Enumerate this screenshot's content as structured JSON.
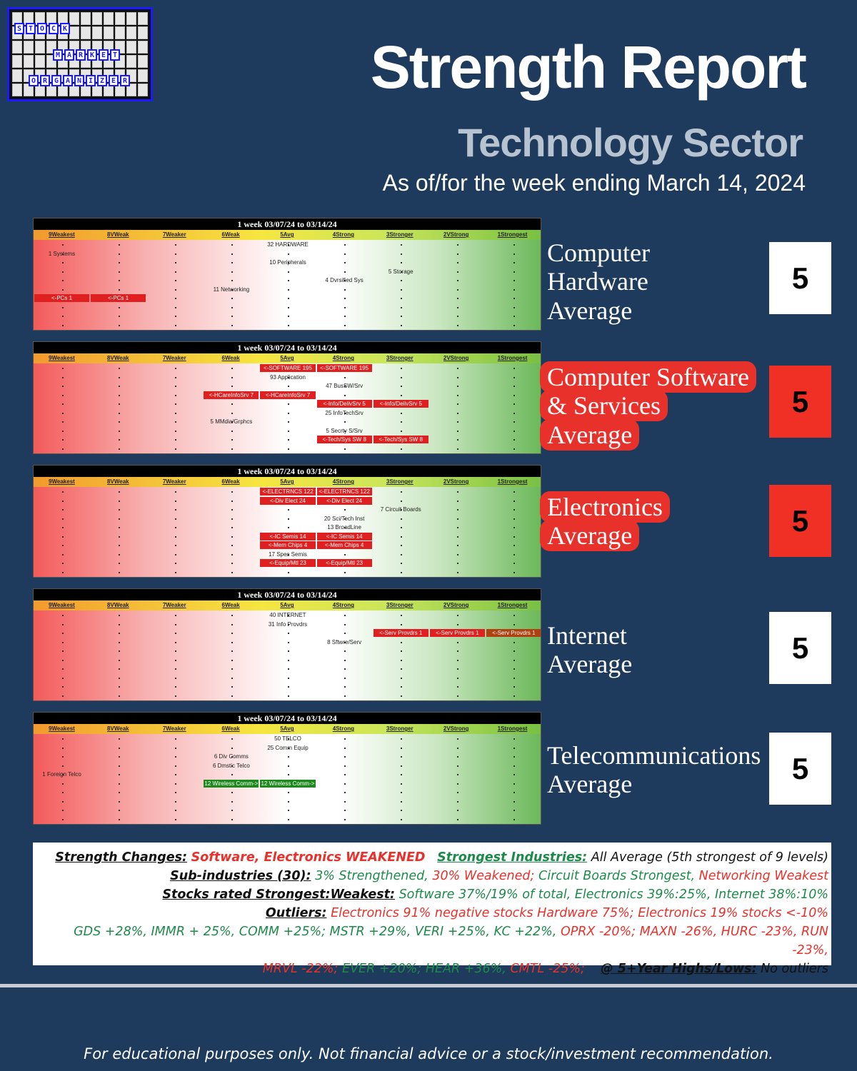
{
  "logo": {
    "words": [
      "STOCK",
      "MARKET",
      "ORGANIZER"
    ]
  },
  "title": "Strength Report",
  "subtitle": "Technology Sector",
  "as_of": "As of/for the week ending March 14, 2024",
  "levels": [
    "9Weakest",
    "8VWeak",
    "7Weaker",
    "6Weak",
    "5Avg",
    "4Strong",
    "3Stronger",
    "2VStrong",
    "1Strongest"
  ],
  "panel_header": "1 week 03/07/24 to 03/14/24",
  "sectors": [
    {
      "label": "Computer Hardware Average",
      "label_lines": [
        "Computer",
        "Hardware",
        "Average"
      ],
      "highlighted": false,
      "score": "5",
      "score_bg": "#ffffff",
      "entries": [
        {
          "text": "32 HARDWARE",
          "row": 0,
          "col": 4,
          "span": 1,
          "style": "plain"
        },
        {
          "text": "1 Systems",
          "row": 1,
          "col": 0,
          "span": 1,
          "style": "plain"
        },
        {
          "text": "10 Peripherals",
          "row": 2,
          "col": 4,
          "span": 1,
          "style": "plain"
        },
        {
          "text": "5 Storage",
          "row": 3,
          "col": 6,
          "span": 1,
          "style": "plain"
        },
        {
          "text": "4 Dvrsified Sys",
          "row": 4,
          "col": 5,
          "span": 1,
          "style": "plain"
        },
        {
          "text": "11 Networking",
          "row": 5,
          "col": 3,
          "span": 1,
          "style": "plain"
        },
        {
          "text": "<-PCs 1",
          "row": 6,
          "col": 0,
          "span": 1,
          "style": "red"
        },
        {
          "text": "<-PCs 1",
          "row": 6,
          "col": 1,
          "span": 1,
          "style": "red"
        }
      ]
    },
    {
      "label": "Computer Software & Services Average",
      "label_lines": [
        "Computer Software",
        "& Services",
        "Average"
      ],
      "highlighted": true,
      "score": "5",
      "score_bg": "#f03024",
      "entries": [
        {
          "text": "<-SOFTWARE 195",
          "row": 0,
          "col": 4,
          "span": 1,
          "style": "red"
        },
        {
          "text": "<-SOFTWARE 195",
          "row": 0,
          "col": 5,
          "span": 1,
          "style": "red"
        },
        {
          "text": "93 Application",
          "row": 1,
          "col": 4,
          "span": 1,
          "style": "plain"
        },
        {
          "text": "47 BusSW/Srv",
          "row": 2,
          "col": 5,
          "span": 1,
          "style": "plain"
        },
        {
          "text": "<-HCareInfoSrv 7",
          "row": 3,
          "col": 3,
          "span": 1,
          "style": "red"
        },
        {
          "text": "<-HCareInfoSrv 7",
          "row": 3,
          "col": 4,
          "span": 1,
          "style": "red"
        },
        {
          "text": "<-Info/DelivSrv 5",
          "row": 4,
          "col": 5,
          "span": 1,
          "style": "red"
        },
        {
          "text": "<-Info/DelivSrv 5",
          "row": 4,
          "col": 6,
          "span": 1,
          "style": "red"
        },
        {
          "text": "25 InfoTechSrv",
          "row": 5,
          "col": 5,
          "span": 1,
          "style": "plain"
        },
        {
          "text": "5 MMdia/Grphcs",
          "row": 6,
          "col": 3,
          "span": 1,
          "style": "plain"
        },
        {
          "text": "5 Secrty S/Srv",
          "row": 7,
          "col": 5,
          "span": 1,
          "style": "plain"
        },
        {
          "text": "<-Tech/Sys SW 8",
          "row": 8,
          "col": 5,
          "span": 1,
          "style": "red"
        },
        {
          "text": "<-Tech/Sys SW 8",
          "row": 8,
          "col": 6,
          "span": 1,
          "style": "red"
        }
      ]
    },
    {
      "label": "Electronics Average",
      "label_lines": [
        "Electronics",
        "Average"
      ],
      "highlighted": true,
      "score": "5",
      "score_bg": "#f03024",
      "entries": [
        {
          "text": "<-ELECTRNCS 122",
          "row": 0,
          "col": 4,
          "span": 1,
          "style": "red"
        },
        {
          "text": "<-ELECTRNCS 122",
          "row": 0,
          "col": 5,
          "span": 1,
          "style": "red"
        },
        {
          "text": "<-Div Elect 24",
          "row": 1,
          "col": 4,
          "span": 1,
          "style": "red"
        },
        {
          "text": "<-Div Elect 24",
          "row": 1,
          "col": 5,
          "span": 1,
          "style": "red"
        },
        {
          "text": "7 Circuit Boards",
          "row": 2,
          "col": 6,
          "span": 1,
          "style": "plain"
        },
        {
          "text": "20 Sci/Tech Inst",
          "row": 3,
          "col": 5,
          "span": 1,
          "style": "plain"
        },
        {
          "text": "13 BroadLine",
          "row": 4,
          "col": 5,
          "span": 1,
          "style": "plain"
        },
        {
          "text": "<-IC Semis 14",
          "row": 5,
          "col": 4,
          "span": 1,
          "style": "red"
        },
        {
          "text": "<-IC Semis 14",
          "row": 5,
          "col": 5,
          "span": 1,
          "style": "red"
        },
        {
          "text": "<-Mem Chips 4",
          "row": 6,
          "col": 4,
          "span": 1,
          "style": "red"
        },
        {
          "text": "<-Mem Chips 4",
          "row": 6,
          "col": 5,
          "span": 1,
          "style": "red"
        },
        {
          "text": "17 Spec Semis",
          "row": 7,
          "col": 4,
          "span": 1,
          "style": "plain"
        },
        {
          "text": "<-Equip/Mtl 23",
          "row": 8,
          "col": 4,
          "span": 1,
          "style": "red"
        },
        {
          "text": "<-Equip/Mtl 23",
          "row": 8,
          "col": 5,
          "span": 1,
          "style": "red"
        }
      ]
    },
    {
      "label": "Internet Average",
      "label_lines": [
        "Internet",
        "Average"
      ],
      "highlighted": false,
      "score": "5",
      "score_bg": "#ffffff",
      "entries": [
        {
          "text": "40 INTERNET",
          "row": 0,
          "col": 4,
          "span": 1,
          "style": "plain"
        },
        {
          "text": "31 Info Provdrs",
          "row": 1,
          "col": 4,
          "span": 1,
          "style": "plain"
        },
        {
          "text": "<-Serv Provdrs 1",
          "row": 2,
          "col": 6,
          "span": 1,
          "style": "red"
        },
        {
          "text": "<-Serv Provdrs 1",
          "row": 2,
          "col": 7,
          "span": 1,
          "style": "red"
        },
        {
          "text": "<-Serv Provdrs 1",
          "row": 2,
          "col": 8,
          "span": 1,
          "style": "brown"
        },
        {
          "text": "8 Sftwre/Serv",
          "row": 3,
          "col": 5,
          "span": 1,
          "style": "plain"
        }
      ]
    },
    {
      "label": "Telecommunications Average",
      "label_lines": [
        "Telecommunications",
        "Average"
      ],
      "highlighted": false,
      "score": "5",
      "score_bg": "#ffffff",
      "entries": [
        {
          "text": "50 TELCO",
          "row": 0,
          "col": 4,
          "span": 1,
          "style": "plain"
        },
        {
          "text": "25 Comm Equip",
          "row": 1,
          "col": 4,
          "span": 1,
          "style": "plain"
        },
        {
          "text": "6 Div Comms",
          "row": 2,
          "col": 3,
          "span": 1,
          "style": "plain"
        },
        {
          "text": "6 Dmstic Telco",
          "row": 3,
          "col": 3,
          "span": 1,
          "style": "plain"
        },
        {
          "text": "1 Foreign Telco",
          "row": 4,
          "col": 0,
          "span": 1,
          "style": "plain"
        },
        {
          "text": "12 Wireless Comm->",
          "row": 5,
          "col": 3,
          "span": 1,
          "style": "green"
        },
        {
          "text": "12 Wireless Comm->",
          "row": 5,
          "col": 4,
          "span": 1,
          "style": "green"
        }
      ]
    }
  ],
  "summary": {
    "line1": {
      "lbl1": "Strength Changes:",
      "txt1": "Software, Electronics WEAKENED",
      "lbl2": "Strongest Industries:",
      "txt2": "All Average (5th strongest of 9 levels)"
    },
    "line2": {
      "lbl": "Sub-industries (30):",
      "a": "3% Strengthened, ",
      "b": "30% Weakened; ",
      "c": "Circuit Boards Strongest, ",
      "d": "Networking Weakest"
    },
    "line3": {
      "lbl": "Stocks rated Strongest:Weakest:",
      "txt": "Software 37%/19% of total, Electronics 39%:25%, Internet 38%:10%"
    },
    "line4": {
      "lbl": "Outliers:",
      "txt": "Electronics 91% negative stocks Hardware 75%; Electronics 19% stocks <-10%"
    },
    "line5": {
      "g": "GDS +28%, IMMR + 25%, COMM +25%; MSTR +29%, VERI +25%, KC +22%, ",
      "r": "OPRX -20%; MAXN -26%, HURC -23%, RUN -23%,"
    },
    "line6": {
      "r": "MRVL -22%; ",
      "g": "EVER +20%; HEAR +36%, ",
      "r2": "CMTL -25%;",
      "lbl": "@ 5+Year Highs/Lows:",
      "txt": "No outliers"
    }
  },
  "footer": "For educational purposes only. Not financial advice or a stock/investment recommendation.",
  "colors": {
    "background": "#1e3a5c",
    "red": "#e8312b",
    "green": "#1e8a4a"
  }
}
